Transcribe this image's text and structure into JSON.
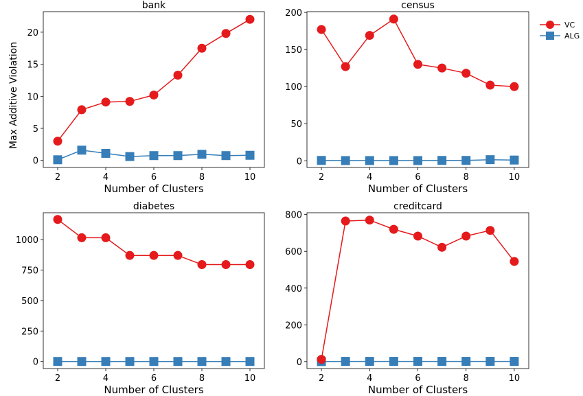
{
  "figure": {
    "ylabel": "Max Additive Violation",
    "legend_placement": "top-right, outside plots"
  },
  "legend": [
    {
      "name": "VC",
      "color": "#e41a1c",
      "marker": "circle"
    },
    {
      "name": "ALG",
      "color": "#377eb8",
      "marker": "square"
    }
  ],
  "chart_data": [
    {
      "type": "line",
      "title": "bank",
      "xlabel": "Number of Clusters",
      "ylabel": "Max Additive Violation",
      "x": [
        2,
        3,
        4,
        5,
        6,
        7,
        8,
        9,
        10
      ],
      "xlim": [
        1.4,
        10.6
      ],
      "ylim": [
        -1.1,
        23.2
      ],
      "xticks": [
        2,
        4,
        6,
        8,
        10
      ],
      "yticks": [
        0,
        5,
        10,
        15,
        20
      ],
      "series": [
        {
          "name": "VC",
          "values": [
            3.0,
            7.9,
            9.1,
            9.2,
            10.2,
            13.3,
            17.5,
            19.8,
            22.0
          ]
        },
        {
          "name": "ALG",
          "values": [
            0.1,
            1.6,
            1.1,
            0.6,
            0.75,
            0.75,
            0.95,
            0.75,
            0.8
          ]
        }
      ]
    },
    {
      "type": "line",
      "title": "census",
      "xlabel": "Number of Clusters",
      "ylabel": "",
      "x": [
        2,
        3,
        4,
        5,
        6,
        7,
        8,
        9,
        10
      ],
      "xlim": [
        1.4,
        10.6
      ],
      "ylim": [
        -9,
        201
      ],
      "xticks": [
        2,
        4,
        6,
        8,
        10
      ],
      "yticks": [
        0,
        50,
        100,
        150,
        200
      ],
      "series": [
        {
          "name": "VC",
          "values": [
            177,
            127,
            169,
            191,
            130,
            125,
            118,
            102,
            100
          ]
        },
        {
          "name": "ALG",
          "values": [
            0.5,
            0.3,
            0.3,
            0.3,
            0.3,
            0.5,
            0.5,
            1.5,
            1.0
          ]
        }
      ]
    },
    {
      "type": "line",
      "title": "diabetes",
      "xlabel": "Number of Clusters",
      "ylabel": "",
      "x": [
        2,
        3,
        4,
        5,
        6,
        7,
        8,
        9,
        10
      ],
      "xlim": [
        1.4,
        10.6
      ],
      "ylim": [
        -58,
        1220
      ],
      "xticks": [
        2,
        4,
        6,
        8,
        10
      ],
      "yticks": [
        0,
        250,
        500,
        750,
        1000
      ],
      "series": [
        {
          "name": "VC",
          "values": [
            1165,
            1015,
            1015,
            870,
            870,
            870,
            795,
            795,
            795
          ]
        },
        {
          "name": "ALG",
          "values": [
            0,
            0,
            0,
            0,
            0,
            0,
            0,
            0,
            0
          ]
        }
      ]
    },
    {
      "type": "line",
      "title": "creditcard",
      "xlabel": "Number of Clusters",
      "ylabel": "",
      "x": [
        2,
        3,
        4,
        5,
        6,
        7,
        8,
        9,
        10
      ],
      "xlim": [
        1.4,
        10.6
      ],
      "ylim": [
        -38,
        810
      ],
      "xticks": [
        2,
        4,
        6,
        8,
        10
      ],
      "yticks": [
        0,
        200,
        400,
        600,
        800
      ],
      "series": [
        {
          "name": "VC",
          "values": [
            12,
            765,
            770,
            720,
            683,
            622,
            683,
            714,
            545
          ]
        },
        {
          "name": "ALG",
          "values": [
            0,
            1,
            1,
            1,
            1,
            1,
            1,
            1,
            1
          ]
        }
      ]
    }
  ]
}
